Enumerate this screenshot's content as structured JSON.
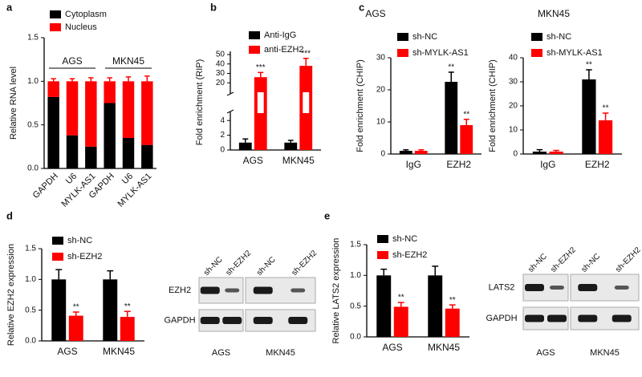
{
  "chart_data": [
    {
      "panel": "a",
      "type": "stacked_bar",
      "ylabel": "Relative RNA level",
      "categories": [
        "GAPDH",
        "U6",
        "MYLK-AS1",
        "GAPDH",
        "U6",
        "MYLK-AS1"
      ],
      "group_labels": [
        "AGS",
        "MKN45"
      ],
      "series": [
        {
          "name": "Cytoplasm",
          "color": "#000000",
          "values": [
            0.82,
            0.38,
            0.25,
            0.75,
            0.35,
            0.27
          ],
          "errors": [
            0.07,
            0.05,
            0.02,
            0.08,
            0.06,
            0.05
          ]
        },
        {
          "name": "Nucleus",
          "color": "#ff0000",
          "values": [
            0.18,
            0.62,
            0.75,
            0.25,
            0.65,
            0.73
          ],
          "errors": [
            0.03,
            0.03,
            0.04,
            0.04,
            0.05,
            0.06
          ]
        }
      ],
      "ylim": [
        0,
        1.5
      ],
      "yticks": [
        {
          "value": 0,
          "label": "0.0"
        },
        0.5,
        {
          "value": 1,
          "label": "1.0"
        },
        1.5
      ]
    },
    {
      "panel": "b",
      "type": "bar",
      "ylabel": "Fold enrichment (RIP)",
      "categories": [
        "AGS",
        "MKN45"
      ],
      "series": [
        {
          "name": "Anti-IgG",
          "color": "#000000",
          "values": [
            1,
            1
          ],
          "errors": [
            0.5,
            0.3
          ]
        },
        {
          "name": "anti-EZH2",
          "color": "#ff0000",
          "values": [
            26,
            38
          ],
          "errors": [
            5,
            8
          ],
          "annotations": [
            "***",
            "***"
          ]
        }
      ],
      "ylim": [
        0,
        50
      ],
      "ybreak": [
        5,
        10
      ],
      "yticks": [
        0,
        2,
        4,
        20,
        30,
        40,
        50
      ]
    },
    {
      "panel": "c",
      "type": "bar",
      "title": "AGS",
      "ylabel": "Fold enrichment (CHIP)",
      "categories": [
        "IgG",
        "EZH2"
      ],
      "series": [
        {
          "name": "sh-NC",
          "color": "#000000",
          "values": [
            1,
            22.5
          ],
          "errors": [
            0.3,
            3
          ],
          "annotations": [
            null,
            "**"
          ]
        },
        {
          "name": "sh-MYLK-AS1",
          "color": "#ff0000",
          "values": [
            1,
            9
          ],
          "errors": [
            0.3,
            1.8
          ],
          "annotations": [
            null,
            "**"
          ]
        }
      ],
      "ylim": [
        0,
        30
      ],
      "yticks": [
        0,
        10,
        20,
        30
      ]
    },
    {
      "type": "bar",
      "title": "MKN45",
      "ylabel": "Fold enrichment (CHIP)",
      "categories": [
        "IgG",
        "EZH2"
      ],
      "series": [
        {
          "name": "sh-NC",
          "color": "#000000",
          "values": [
            1,
            31
          ],
          "errors": [
            0.8,
            4
          ],
          "annotations": [
            null,
            "**"
          ]
        },
        {
          "name": "sh-MYLK-AS1",
          "color": "#ff0000",
          "values": [
            1,
            14
          ],
          "errors": [
            0.5,
            3
          ],
          "annotations": [
            null,
            "**"
          ]
        }
      ],
      "ylim": [
        0,
        40
      ],
      "yticks": [
        0,
        10,
        20,
        30,
        40
      ]
    },
    {
      "panel": "d",
      "type": "bar",
      "ylabel": "Relative EZH2 expression",
      "categories": [
        "AGS",
        "MKN45"
      ],
      "series": [
        {
          "name": "sh-NC",
          "color": "#000000",
          "values": [
            1,
            1
          ],
          "errors": [
            0.16,
            0.14
          ]
        },
        {
          "name": "sh-EZH2",
          "color": "#ff0000",
          "values": [
            0.41,
            0.39
          ],
          "errors": [
            0.06,
            0.09
          ],
          "annotations": [
            "**",
            "**"
          ]
        }
      ],
      "ylim": [
        0,
        1.5
      ],
      "yticks": [
        {
          "value": 0,
          "label": "0.0"
        },
        0.5,
        {
          "value": 1,
          "label": "1.0"
        },
        1.5
      ]
    },
    {
      "panel": "e",
      "type": "bar",
      "ylabel": "Relative LATS2  expression",
      "categories": [
        "AGS",
        "MKN45"
      ],
      "series": [
        {
          "name": "sh-NC",
          "color": "#000000",
          "values": [
            1,
            1
          ],
          "errors": [
            0.1,
            0.15
          ]
        },
        {
          "name": "sh-EZH2",
          "color": "#ff0000",
          "values": [
            0.49,
            0.46
          ],
          "errors": [
            0.07,
            0.06
          ],
          "annotations": [
            "**",
            "**"
          ]
        }
      ],
      "ylim": [
        0,
        1.5
      ],
      "yticks": [
        {
          "value": 0,
          "label": "0.0"
        },
        0.5,
        {
          "value": 1,
          "label": "1.0"
        },
        1.5
      ]
    }
  ],
  "blots": [
    {
      "lanes": [
        "sh-NC",
        "sh-EZH2",
        "sh-NC",
        "sh-EZH2"
      ],
      "rows": [
        "EZH2",
        "GAPDH"
      ],
      "groups": [
        "AGS",
        "MKN45"
      ]
    },
    {
      "lanes": [
        "sh-NC",
        "sh-EZH2",
        "sh-NC",
        "sh-EZH2"
      ],
      "rows": [
        "LATS2",
        "GAPDH"
      ],
      "groups": [
        "AGS",
        "MKN45"
      ]
    }
  ]
}
